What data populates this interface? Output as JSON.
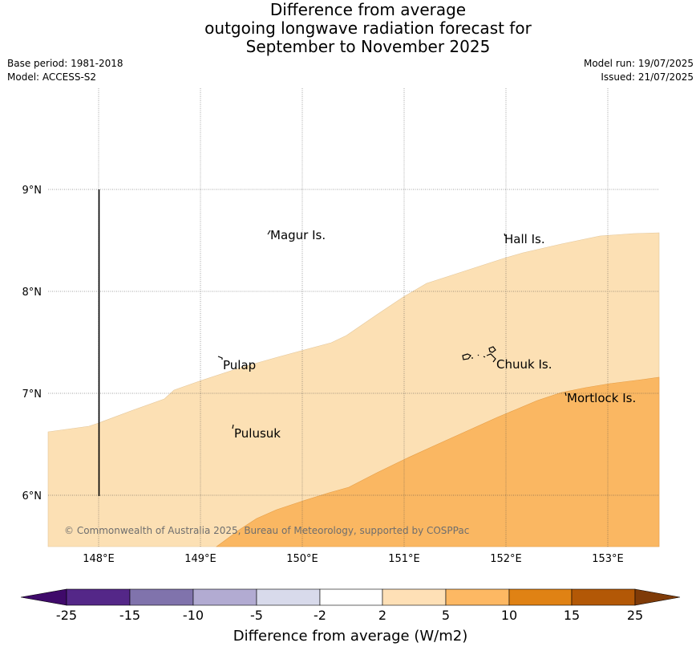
{
  "title": {
    "line1": "Difference from average",
    "line2": "outgoing longwave radiation forecast for",
    "line3": "September to November 2025"
  },
  "meta": {
    "base_period": "Base period: 1981-2018",
    "model": "Model: ACCESS-S2",
    "model_run": "Model run: 19/07/2025",
    "issued": "Issued: 21/07/2025"
  },
  "map": {
    "lon_ticks": [
      "148°E",
      "149°E",
      "150°E",
      "151°E",
      "152°E",
      "153°E"
    ],
    "lat_ticks": [
      "9°N",
      "8°N",
      "7°N",
      "6°N"
    ],
    "places": {
      "magur": "Magur Is.",
      "hall": "Hall Is.",
      "pulap": "Pulap",
      "chuuk": "Chuuk Is.",
      "mortlock": "Mortlock Is.",
      "pulusuk": "Pulusuk"
    },
    "copyright": "© Commonwealth of Australia 2025, Bureau of Meteorology, supported by COSPPac",
    "fill_colors": {
      "2_to_5": "#fce0b4",
      "5_to_10": "#fab762"
    }
  },
  "colorbar": {
    "labels": [
      "-25",
      "-15",
      "-10",
      "-5",
      "-2",
      "2",
      "5",
      "10",
      "15",
      "25"
    ],
    "colors": [
      "#3f0a6a",
      "#542788",
      "#8073ac",
      "#b2abd2",
      "#d8daeb",
      "#ffffff",
      "#fee0b6",
      "#fdb863",
      "#e08214",
      "#b35806",
      "#7f3b08"
    ],
    "title": "Difference from average (W/m2)"
  }
}
